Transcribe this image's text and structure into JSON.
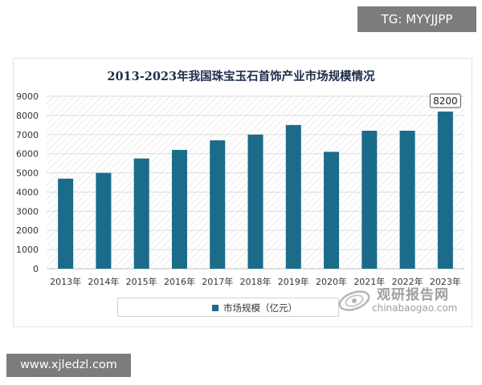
{
  "badge_top": "TG: MYYJJPP",
  "badge_bottom": "www.xjledzl.com",
  "watermark": {
    "cn": "观研报告网",
    "en": "chinabaogao.com"
  },
  "colors": {
    "bar": "#1b6b8a",
    "grid": "#dcdcdc",
    "text": "#333333"
  },
  "chart_data": {
    "type": "bar",
    "title": "2013-2023年我国珠宝玉石首饰产业市场规模情况",
    "categories": [
      "2013年",
      "2014年",
      "2015年",
      "2016年",
      "2017年",
      "2018年",
      "2019年",
      "2020年",
      "2021年",
      "2022年",
      "2023年"
    ],
    "series": [
      {
        "name": "市场规模（亿元）",
        "values": [
          4700,
          5000,
          5750,
          6200,
          6700,
          7000,
          7500,
          6100,
          7200,
          7200,
          8200
        ]
      }
    ],
    "data_labels": [
      {
        "category": "2023年",
        "text": "8200"
      }
    ],
    "ylim": [
      0,
      9000
    ],
    "yticks": [
      0,
      1000,
      2000,
      3000,
      4000,
      5000,
      6000,
      7000,
      8000,
      9000
    ],
    "grid": true,
    "legend": "bottom"
  }
}
